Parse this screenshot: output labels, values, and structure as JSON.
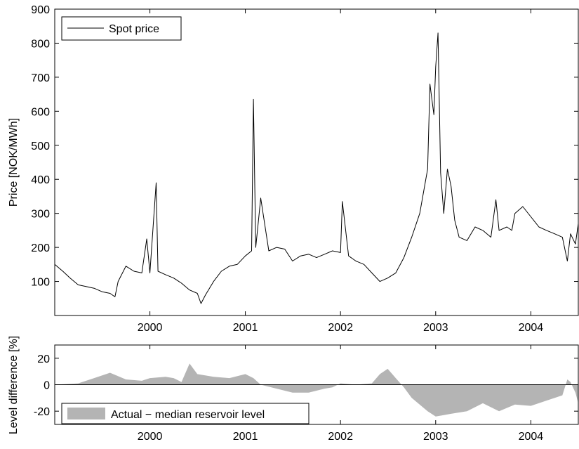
{
  "chart_data": [
    {
      "type": "line",
      "ylabel": "Price [NOK/MWh]",
      "xlim": [
        "1999-01-01",
        "2004-07-01"
      ],
      "ylim": [
        0,
        900
      ],
      "yticks": [
        100,
        200,
        300,
        400,
        500,
        600,
        700,
        800,
        900
      ],
      "xticks": [
        "2000",
        "2001",
        "2002",
        "2003",
        "2004"
      ],
      "legend": {
        "placement": "top-left",
        "entries": [
          "Spot price"
        ]
      },
      "grid": false,
      "series": [
        {
          "name": "Spot price",
          "color": "#000000",
          "x": [
            "1999-01-01",
            "1999-02-01",
            "1999-03-01",
            "1999-04-01",
            "1999-05-01",
            "1999-06-01",
            "1999-07-01",
            "1999-08-01",
            "1999-08-20",
            "1999-09-01",
            "1999-10-01",
            "1999-11-01",
            "1999-12-01",
            "1999-12-20",
            "2000-01-01",
            "2000-01-25",
            "2000-02-01",
            "2000-03-01",
            "2000-04-01",
            "2000-05-01",
            "2000-06-01",
            "2000-07-01",
            "2000-07-15",
            "2000-08-01",
            "2000-09-01",
            "2000-10-01",
            "2000-11-01",
            "2000-12-01",
            "2001-01-01",
            "2001-01-25",
            "2001-02-01",
            "2001-02-10",
            "2001-03-01",
            "2001-04-01",
            "2001-05-01",
            "2001-06-01",
            "2001-07-01",
            "2001-08-01",
            "2001-09-01",
            "2001-10-01",
            "2001-11-01",
            "2001-12-01",
            "2002-01-01",
            "2002-01-08",
            "2002-02-01",
            "2002-03-01",
            "2002-04-01",
            "2002-05-01",
            "2002-06-01",
            "2002-07-01",
            "2002-08-01",
            "2002-09-01",
            "2002-10-01",
            "2002-11-01",
            "2002-12-01",
            "2002-12-10",
            "2002-12-25",
            "2003-01-01",
            "2003-01-10",
            "2003-01-20",
            "2003-02-01",
            "2003-02-15",
            "2003-03-01",
            "2003-03-15",
            "2003-04-01",
            "2003-05-01",
            "2003-06-01",
            "2003-07-01",
            "2003-08-01",
            "2003-08-20",
            "2003-09-01",
            "2003-10-01",
            "2003-10-20",
            "2003-11-01",
            "2003-12-01",
            "2004-01-01",
            "2004-02-01",
            "2004-03-01",
            "2004-04-01",
            "2004-05-01",
            "2004-05-20",
            "2004-06-01",
            "2004-06-20",
            "2004-07-01"
          ],
          "values": [
            150,
            130,
            110,
            90,
            85,
            80,
            70,
            65,
            55,
            100,
            145,
            130,
            125,
            225,
            125,
            390,
            130,
            120,
            110,
            95,
            75,
            65,
            35,
            60,
            100,
            130,
            145,
            150,
            175,
            190,
            635,
            200,
            345,
            190,
            200,
            195,
            160,
            175,
            180,
            170,
            180,
            190,
            185,
            335,
            175,
            160,
            150,
            125,
            100,
            110,
            125,
            170,
            230,
            300,
            430,
            680,
            590,
            730,
            830,
            420,
            300,
            430,
            380,
            280,
            230,
            220,
            260,
            250,
            230,
            340,
            250,
            260,
            250,
            300,
            320,
            290,
            260,
            250,
            240,
            230,
            160,
            240,
            210,
            270
          ]
        }
      ]
    },
    {
      "type": "area",
      "ylabel": "Level difference [%]",
      "xlim": [
        "1999-01-01",
        "2004-07-01"
      ],
      "ylim": [
        -30,
        30
      ],
      "yticks": [
        -20,
        0,
        20
      ],
      "xticks": [
        "2000",
        "2001",
        "2002",
        "2003",
        "2004"
      ],
      "legend": {
        "placement": "bottom-left",
        "entries": [
          "Actual − median reservoir level"
        ]
      },
      "grid": false,
      "series": [
        {
          "name": "Actual − median reservoir level",
          "color": "#b4b4b4",
          "x": [
            "1999-01-01",
            "1999-04-01",
            "1999-06-01",
            "1999-08-01",
            "1999-10-01",
            "1999-12-01",
            "2000-01-01",
            "2000-03-01",
            "2000-04-01",
            "2000-05-01",
            "2000-06-01",
            "2000-07-01",
            "2000-09-01",
            "2000-11-01",
            "2001-01-01",
            "2001-02-01",
            "2001-03-01",
            "2001-05-01",
            "2001-07-01",
            "2001-09-01",
            "2001-11-01",
            "2001-12-01",
            "2002-01-01",
            "2002-03-01",
            "2002-05-01",
            "2002-06-01",
            "2002-07-01",
            "2002-08-01",
            "2002-09-01",
            "2002-10-01",
            "2002-12-01",
            "2003-01-01",
            "2003-03-01",
            "2003-05-01",
            "2003-07-01",
            "2003-09-01",
            "2003-11-01",
            "2004-01-01",
            "2004-03-01",
            "2004-05-01",
            "2004-05-20",
            "2004-06-01",
            "2004-06-20",
            "2004-07-01"
          ],
          "values": [
            0,
            1,
            5,
            9,
            4,
            3,
            5,
            6,
            5,
            2,
            16,
            8,
            6,
            5,
            8,
            5,
            0,
            -3,
            -6,
            -6,
            -3,
            -2,
            1,
            0,
            1,
            8,
            12,
            5,
            -2,
            -10,
            -20,
            -24,
            -22,
            -20,
            -14,
            -20,
            -15,
            -16,
            -12,
            -8,
            4,
            2,
            -6,
            -14
          ]
        }
      ]
    }
  ]
}
